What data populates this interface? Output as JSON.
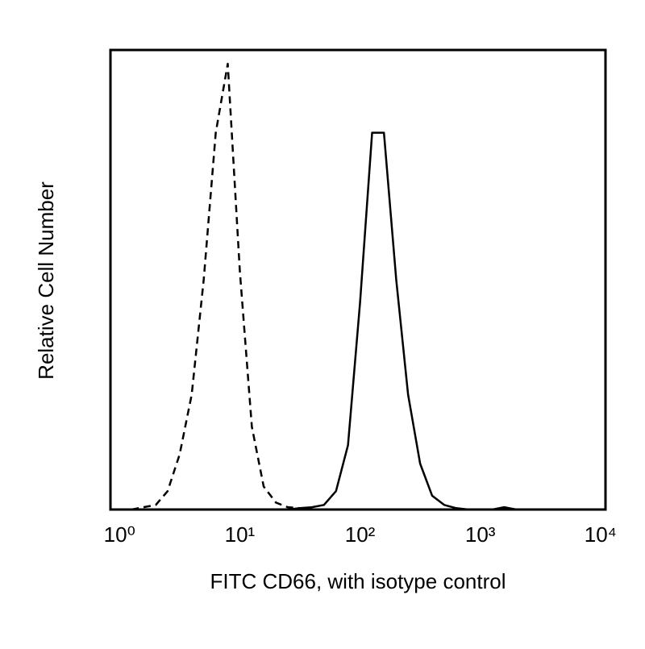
{
  "chart_data": {
    "type": "line",
    "x_label": "FITC CD66, with isotype control",
    "y_label": "Relative Cell Number",
    "x_scale": "log",
    "xlim": [
      0.84,
      11000
    ],
    "xticks": [
      {
        "value": 1,
        "label": "10⁰"
      },
      {
        "value": 10,
        "label": "10¹"
      },
      {
        "value": 100,
        "label": "10²"
      },
      {
        "value": 1000,
        "label": "10³"
      },
      {
        "value": 10000,
        "label": "10⁴"
      }
    ],
    "ylim": [
      0,
      100
    ],
    "x": [
      1,
      1.26,
      1.58,
      2,
      2.51,
      3.16,
      3.98,
      5.01,
      6.31,
      7.94,
      10,
      12.6,
      15.8,
      20,
      25.1,
      31.6,
      39.8,
      50.1,
      63.1,
      79.4,
      100,
      126,
      158,
      200,
      251,
      316,
      398,
      501,
      631,
      794,
      1000,
      1260,
      1580,
      2000,
      2510,
      3160
    ],
    "series": [
      {
        "color": "#000000",
        "dashed": true,
        "values": [
          0,
          0,
          0.5,
          1,
          4,
          12,
          25,
          50,
          82,
          97,
          52,
          18,
          5,
          1.5,
          0.5,
          0.3,
          0,
          0,
          0,
          0,
          0,
          0,
          0,
          0,
          0,
          0,
          0,
          0,
          0,
          0,
          0,
          0,
          0,
          0,
          0,
          0
        ]
      },
      {
        "color": "#000000",
        "dashed": false,
        "values": [
          0,
          0,
          0,
          0,
          0,
          0,
          0,
          0,
          0,
          0,
          0,
          0,
          0,
          0,
          0,
          0.3,
          0.5,
          1,
          4,
          14,
          45,
          82,
          82,
          50,
          25,
          10,
          3,
          1,
          0.3,
          0,
          0,
          0,
          0.5,
          0,
          0,
          0
        ]
      }
    ]
  }
}
